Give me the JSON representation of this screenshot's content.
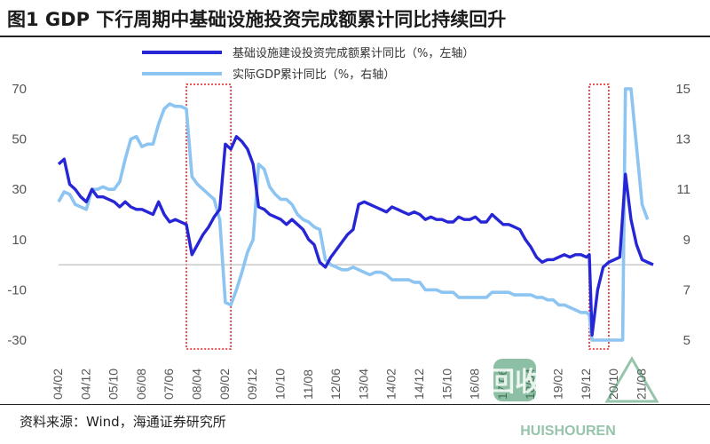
{
  "title": "图1  GDP 下行周期中基础设施投资完成额累计同比持续回升",
  "source": "资料来源：Wind，海通证券研究所",
  "watermark": {
    "main": "回收",
    "sub": "HUISHOUREN"
  },
  "colors": {
    "infra": "#2626d6",
    "gdp": "#8cc4f2",
    "highlight": "#e02020",
    "zero": "#bfbfbf"
  },
  "chart_data": {
    "type": "line",
    "title": "GDP 下行周期中基础设施投资完成额累计同比持续回升",
    "x_ticks": [
      "04/02",
      "04/12",
      "05/10",
      "06/08",
      "07/06",
      "08/04",
      "09/02",
      "09/12",
      "10/10",
      "11/08",
      "12/06",
      "13/04",
      "14/02",
      "14/12",
      "15/10",
      "16/08",
      "17/06",
      "18/04",
      "19/02",
      "19/12",
      "20/10",
      "21/08"
    ],
    "y_left": {
      "min": -30,
      "max": 70,
      "ticks": [
        -30,
        -10,
        10,
        30,
        50,
        70
      ]
    },
    "y_right": {
      "min": 5,
      "max": 15,
      "ticks": [
        5,
        7,
        9,
        11,
        13,
        15
      ]
    },
    "highlights": [
      [
        "07/12",
        "09/04"
      ],
      [
        "20/01",
        "20/08"
      ]
    ],
    "series": [
      {
        "name": "基础设施建设投资完成额累计同比（%，左轴）",
        "axis": "left",
        "points": [
          [
            "04/02",
            40
          ],
          [
            "04/04",
            42
          ],
          [
            "04/06",
            32
          ],
          [
            "04/08",
            30
          ],
          [
            "04/10",
            27
          ],
          [
            "04/12",
            25
          ],
          [
            "05/02",
            30
          ],
          [
            "05/04",
            27
          ],
          [
            "05/06",
            27
          ],
          [
            "05/08",
            26
          ],
          [
            "05/10",
            25
          ],
          [
            "05/12",
            23
          ],
          [
            "06/02",
            25
          ],
          [
            "06/04",
            23
          ],
          [
            "06/06",
            22
          ],
          [
            "06/08",
            22
          ],
          [
            "06/10",
            21
          ],
          [
            "06/12",
            20
          ],
          [
            "07/02",
            25
          ],
          [
            "07/04",
            20
          ],
          [
            "07/06",
            17
          ],
          [
            "07/08",
            18
          ],
          [
            "07/10",
            17
          ],
          [
            "07/12",
            16
          ],
          [
            "08/02",
            4
          ],
          [
            "08/04",
            8
          ],
          [
            "08/06",
            12
          ],
          [
            "08/08",
            15
          ],
          [
            "08/10",
            19
          ],
          [
            "08/12",
            22
          ],
          [
            "09/02",
            48
          ],
          [
            "09/04",
            46
          ],
          [
            "09/06",
            51
          ],
          [
            "09/08",
            49
          ],
          [
            "09/10",
            46
          ],
          [
            "09/12",
            40
          ],
          [
            "10/02",
            23
          ],
          [
            "10/04",
            22
          ],
          [
            "10/06",
            20
          ],
          [
            "10/08",
            19
          ],
          [
            "10/10",
            18
          ],
          [
            "10/12",
            16
          ],
          [
            "11/02",
            18
          ],
          [
            "11/04",
            16
          ],
          [
            "11/06",
            14
          ],
          [
            "11/08",
            10
          ],
          [
            "11/10",
            8
          ],
          [
            "11/12",
            1
          ],
          [
            "12/02",
            -1
          ],
          [
            "12/04",
            3
          ],
          [
            "12/06",
            6
          ],
          [
            "12/08",
            9
          ],
          [
            "12/10",
            12
          ],
          [
            "12/12",
            14
          ],
          [
            "13/02",
            24
          ],
          [
            "13/04",
            25
          ],
          [
            "13/06",
            24
          ],
          [
            "13/08",
            23
          ],
          [
            "13/10",
            22
          ],
          [
            "13/12",
            21
          ],
          [
            "14/02",
            23
          ],
          [
            "14/04",
            22
          ],
          [
            "14/06",
            21
          ],
          [
            "14/08",
            20
          ],
          [
            "14/10",
            21
          ],
          [
            "14/12",
            20
          ],
          [
            "15/02",
            18
          ],
          [
            "15/04",
            19
          ],
          [
            "15/06",
            18
          ],
          [
            "15/08",
            18
          ],
          [
            "15/10",
            17
          ],
          [
            "15/12",
            17
          ],
          [
            "16/02",
            19
          ],
          [
            "16/04",
            18
          ],
          [
            "16/06",
            18
          ],
          [
            "16/08",
            19
          ],
          [
            "16/10",
            17
          ],
          [
            "16/12",
            17
          ],
          [
            "17/02",
            20
          ],
          [
            "17/04",
            18
          ],
          [
            "17/06",
            16
          ],
          [
            "17/08",
            16
          ],
          [
            "17/10",
            15
          ],
          [
            "17/12",
            14
          ],
          [
            "18/02",
            10
          ],
          [
            "18/04",
            7
          ],
          [
            "18/06",
            3
          ],
          [
            "18/08",
            1
          ],
          [
            "18/10",
            2
          ],
          [
            "18/12",
            2
          ],
          [
            "19/02",
            3
          ],
          [
            "19/04",
            4
          ],
          [
            "19/06",
            3
          ],
          [
            "19/08",
            4
          ],
          [
            "19/10",
            4
          ],
          [
            "19/12",
            3
          ],
          [
            "20/01",
            4
          ],
          [
            "20/02",
            -28
          ],
          [
            "20/04",
            -10
          ],
          [
            "20/06",
            -1
          ],
          [
            "20/08",
            1
          ],
          [
            "20/10",
            2
          ],
          [
            "20/12",
            3
          ],
          [
            "21/02",
            36
          ],
          [
            "21/04",
            18
          ],
          [
            "21/06",
            8
          ],
          [
            "21/08",
            2
          ],
          [
            "21/10",
            1
          ],
          [
            "21/12",
            0
          ]
        ]
      },
      {
        "name": "实际GDP累计同比（%，右轴）",
        "axis": "right",
        "points": [
          [
            "04/02",
            10.5
          ],
          [
            "04/04",
            10.9
          ],
          [
            "04/06",
            10.8
          ],
          [
            "04/08",
            10.4
          ],
          [
            "04/10",
            10.3
          ],
          [
            "04/12",
            10.2
          ],
          [
            "05/02",
            11.0
          ],
          [
            "05/04",
            11.0
          ],
          [
            "05/06",
            11.1
          ],
          [
            "05/08",
            11.0
          ],
          [
            "05/10",
            11.0
          ],
          [
            "05/12",
            11.3
          ],
          [
            "06/02",
            12.2
          ],
          [
            "06/04",
            13.0
          ],
          [
            "06/06",
            13.1
          ],
          [
            "06/08",
            12.7
          ],
          [
            "06/10",
            12.8
          ],
          [
            "06/12",
            12.8
          ],
          [
            "07/02",
            13.6
          ],
          [
            "07/04",
            14.2
          ],
          [
            "07/06",
            14.4
          ],
          [
            "07/08",
            14.3
          ],
          [
            "07/10",
            14.3
          ],
          [
            "07/12",
            14.2
          ],
          [
            "08/02",
            11.5
          ],
          [
            "08/04",
            11.2
          ],
          [
            "08/06",
            11.0
          ],
          [
            "08/08",
            10.8
          ],
          [
            "08/10",
            10.6
          ],
          [
            "08/12",
            9.8
          ],
          [
            "09/02",
            6.5
          ],
          [
            "09/04",
            6.4
          ],
          [
            "09/06",
            7.0
          ],
          [
            "09/08",
            7.7
          ],
          [
            "09/10",
            8.5
          ],
          [
            "09/12",
            9.0
          ],
          [
            "10/02",
            12.0
          ],
          [
            "10/04",
            11.8
          ],
          [
            "10/06",
            11.1
          ],
          [
            "10/08",
            10.8
          ],
          [
            "10/10",
            10.6
          ],
          [
            "10/12",
            10.6
          ],
          [
            "11/02",
            10.4
          ],
          [
            "11/04",
            10.0
          ],
          [
            "11/06",
            9.8
          ],
          [
            "11/08",
            9.7
          ],
          [
            "11/10",
            9.5
          ],
          [
            "11/12",
            9.4
          ],
          [
            "12/02",
            8.2
          ],
          [
            "12/04",
            8.0
          ],
          [
            "12/06",
            7.9
          ],
          [
            "12/08",
            7.8
          ],
          [
            "12/10",
            7.8
          ],
          [
            "12/12",
            7.9
          ],
          [
            "13/02",
            7.8
          ],
          [
            "13/04",
            7.7
          ],
          [
            "13/06",
            7.6
          ],
          [
            "13/08",
            7.7
          ],
          [
            "13/10",
            7.7
          ],
          [
            "13/12",
            7.6
          ],
          [
            "14/02",
            7.4
          ],
          [
            "14/04",
            7.4
          ],
          [
            "14/06",
            7.4
          ],
          [
            "14/08",
            7.4
          ],
          [
            "14/10",
            7.3
          ],
          [
            "14/12",
            7.3
          ],
          [
            "15/02",
            7.0
          ],
          [
            "15/04",
            7.0
          ],
          [
            "15/06",
            7.0
          ],
          [
            "15/08",
            6.9
          ],
          [
            "15/10",
            6.9
          ],
          [
            "15/12",
            6.9
          ],
          [
            "16/02",
            6.7
          ],
          [
            "16/04",
            6.7
          ],
          [
            "16/06",
            6.7
          ],
          [
            "16/08",
            6.7
          ],
          [
            "16/10",
            6.7
          ],
          [
            "16/12",
            6.7
          ],
          [
            "17/02",
            6.9
          ],
          [
            "17/04",
            6.9
          ],
          [
            "17/06",
            6.9
          ],
          [
            "17/08",
            6.9
          ],
          [
            "17/10",
            6.8
          ],
          [
            "17/12",
            6.8
          ],
          [
            "18/02",
            6.8
          ],
          [
            "18/04",
            6.8
          ],
          [
            "18/06",
            6.7
          ],
          [
            "18/08",
            6.7
          ],
          [
            "18/10",
            6.6
          ],
          [
            "18/12",
            6.6
          ],
          [
            "19/02",
            6.4
          ],
          [
            "19/04",
            6.4
          ],
          [
            "19/06",
            6.3
          ],
          [
            "19/08",
            6.2
          ],
          [
            "19/10",
            6.1
          ],
          [
            "19/12",
            6.1
          ],
          [
            "20/01",
            6.0
          ],
          [
            "20/02",
            5.0
          ],
          [
            "20/04",
            5.0
          ],
          [
            "20/06",
            5.0
          ],
          [
            "20/08",
            5.0
          ],
          [
            "20/10",
            5.0
          ],
          [
            "20/12",
            5.0
          ],
          [
            "21/01",
            5.0
          ],
          [
            "21/02",
            15.0
          ],
          [
            "21/04",
            15.0
          ],
          [
            "21/06",
            12.7
          ],
          [
            "21/08",
            10.4
          ],
          [
            "21/10",
            9.8
          ]
        ]
      }
    ]
  }
}
